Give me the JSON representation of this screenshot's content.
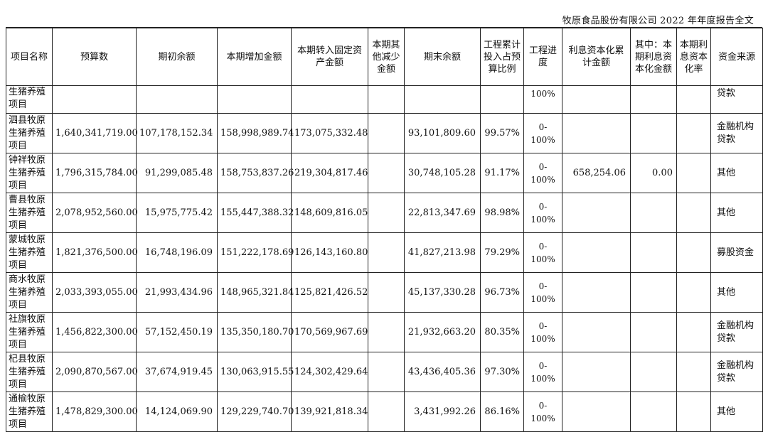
{
  "page_header": "牧原食品股份有限公司 2022 年年度报告全文",
  "columns": [
    "项目名称",
    "预算数",
    "期初余额",
    "本期增加金额",
    "本期转入固定资产金额",
    "本期其他减少金额",
    "期末余额",
    "工程累计投入占预算比例",
    "工程进度",
    "利息资本化累计金额",
    "其中：本期利息资本化金额",
    "本期利息资本化率",
    "资金来源"
  ],
  "rows": [
    {
      "name": "生猪养殖项目",
      "budget": "",
      "opening": "",
      "increase": "",
      "transfer": "",
      "other": "",
      "closing": "",
      "ratio": "",
      "progress": "100%",
      "interest_cum": "",
      "interest_cur": "",
      "rate": "",
      "source": "贷款"
    },
    {
      "name": "泗县牧原生猪养殖项目",
      "budget": "1,640,341,719.00",
      "opening": "107,178,152.34",
      "increase": "158,998,989.74",
      "transfer": "173,075,332.48",
      "other": "",
      "closing": "93,101,809.60",
      "ratio": "99.57%",
      "progress": "0-100%",
      "interest_cum": "",
      "interest_cur": "",
      "rate": "",
      "source": "金融机构贷款"
    },
    {
      "name": "钟祥牧原生猪养殖项目",
      "budget": "1,796,315,784.00",
      "opening": "91,299,085.48",
      "increase": "158,753,837.26",
      "transfer": "219,304,817.46",
      "other": "",
      "closing": "30,748,105.28",
      "ratio": "91.17%",
      "progress": "0-100%",
      "interest_cum": "658,254.06",
      "interest_cur": "0.00",
      "rate": "",
      "source": "其他"
    },
    {
      "name": "曹县牧原生猪养殖项目",
      "budget": "2,078,952,560.00",
      "opening": "15,975,775.42",
      "increase": "155,447,388.32",
      "transfer": "148,609,816.05",
      "other": "",
      "closing": "22,813,347.69",
      "ratio": "98.98%",
      "progress": "0-100%",
      "interest_cum": "",
      "interest_cur": "",
      "rate": "",
      "source": "其他"
    },
    {
      "name": "蒙城牧原生猪养殖项目",
      "budget": "1,821,376,500.00",
      "opening": "16,748,196.09",
      "increase": "151,222,178.69",
      "transfer": "126,143,160.80",
      "other": "",
      "closing": "41,827,213.98",
      "ratio": "79.29%",
      "progress": "0-100%",
      "interest_cum": "",
      "interest_cur": "",
      "rate": "",
      "source": "募股资金"
    },
    {
      "name": "商水牧原生猪养殖项目",
      "budget": "2,033,393,055.00",
      "opening": "21,993,434.96",
      "increase": "148,965,321.84",
      "transfer": "125,821,426.52",
      "other": "",
      "closing": "45,137,330.28",
      "ratio": "96.73%",
      "progress": "0-100%",
      "interest_cum": "",
      "interest_cur": "",
      "rate": "",
      "source": "其他"
    },
    {
      "name": "社旗牧原生猪养殖项目",
      "budget": "1,456,822,300.00",
      "opening": "57,152,450.19",
      "increase": "135,350,180.70",
      "transfer": "170,569,967.69",
      "other": "",
      "closing": "21,932,663.20",
      "ratio": "80.35%",
      "progress": "0-100%",
      "interest_cum": "",
      "interest_cur": "",
      "rate": "",
      "source": "金融机构贷款"
    },
    {
      "name": "杞县牧原生猪养殖项目",
      "budget": "2,090,870,567.00",
      "opening": "37,674,919.45",
      "increase": "130,063,915.55",
      "transfer": "124,302,429.64",
      "other": "",
      "closing": "43,436,405.36",
      "ratio": "97.30%",
      "progress": "0-100%",
      "interest_cum": "",
      "interest_cur": "",
      "rate": "",
      "source": "金融机构贷款"
    },
    {
      "name": "通榆牧原生猪养殖项目",
      "budget": "1,478,829,300.00",
      "opening": "14,124,069.90",
      "increase": "129,229,740.70",
      "transfer": "139,921,818.34",
      "other": "",
      "closing": "3,431,992.26",
      "ratio": "86.16%",
      "progress": "0-100%",
      "interest_cum": "",
      "interest_cur": "",
      "rate": "",
      "source": "其他"
    }
  ]
}
